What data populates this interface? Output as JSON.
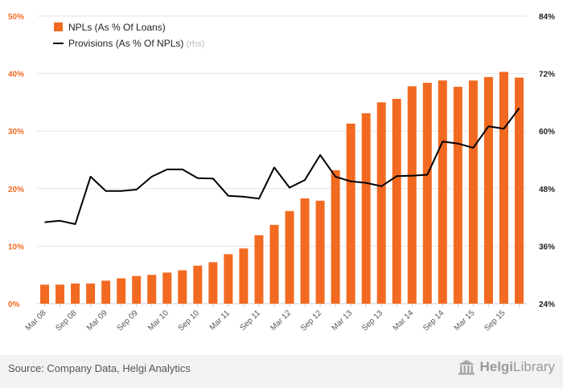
{
  "chart_data": {
    "type": "bar+line",
    "categories": [
      "Mar 08",
      "",
      "Sep 08",
      "",
      "Mar 09",
      "",
      "Sep 09",
      "",
      "Mar 10",
      "",
      "Sep 10",
      "",
      "Mar 11",
      "",
      "Sep 11",
      "",
      "Mar 12",
      "",
      "Sep 12",
      "",
      "Mar 13",
      "",
      "Sep 13",
      "",
      "Mar 14",
      "",
      "Sep 14",
      "",
      "Mar 15",
      "",
      "Sep 15",
      ""
    ],
    "series": [
      {
        "name": "NPLs (As % Of Loans)",
        "type": "bar",
        "axis": "left",
        "color": "#f26a21",
        "values": [
          3.3,
          3.3,
          3.5,
          3.5,
          4.0,
          4.4,
          4.8,
          5.0,
          5.4,
          5.8,
          6.6,
          7.2,
          8.6,
          9.6,
          11.9,
          13.7,
          16.1,
          18.3,
          17.9,
          23.2,
          31.3,
          33.1,
          35.0,
          35.6,
          37.8,
          38.4,
          38.8,
          37.7,
          38.8,
          39.4,
          40.3,
          39.3
        ]
      },
      {
        "name": "Provisions (As % Of NPLs)",
        "type": "line",
        "axis": "right",
        "color": "#000000",
        "values": [
          41.0,
          41.3,
          40.6,
          50.5,
          47.5,
          47.5,
          47.8,
          50.5,
          52.0,
          52.0,
          50.2,
          50.1,
          46.5,
          46.3,
          45.9,
          52.4,
          48.2,
          49.8,
          55.0,
          50.5,
          49.5,
          49.2,
          48.5,
          50.6,
          50.7,
          50.9,
          57.8,
          57.4,
          56.5,
          61.0,
          60.5,
          64.8
        ]
      }
    ],
    "legend": [
      {
        "label": "NPLs (As % Of Loans)",
        "suffix": ""
      },
      {
        "label": "Provisions (As % Of NPLs)",
        "suffix": "(rhs)"
      }
    ],
    "y_left": {
      "ticks": [
        "0%",
        "10%",
        "20%",
        "30%",
        "40%",
        "50%"
      ],
      "ylim": [
        0,
        50
      ],
      "color": "#f26a21"
    },
    "y_right": {
      "ticks": [
        "24%",
        "36%",
        "48%",
        "60%",
        "72%",
        "84%"
      ],
      "ylim": [
        24,
        84
      ],
      "color": "#222222"
    },
    "grid": true,
    "legend_position": "top-left"
  },
  "footer": {
    "source": "Source: Company Data, Helgi Analytics",
    "logo_bold": "Helgi",
    "logo_rest": "Library"
  }
}
